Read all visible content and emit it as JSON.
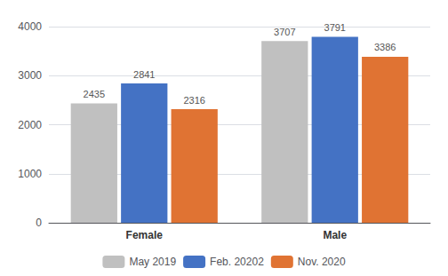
{
  "chart_data": {
    "type": "bar",
    "categories": [
      "Female",
      "Male"
    ],
    "series": [
      {
        "name": "May 2019",
        "color": "#c0c0c0",
        "values": [
          2435,
          3707
        ]
      },
      {
        "name": "Feb. 20202",
        "color": "#4472c4",
        "values": [
          2841,
          3791
        ]
      },
      {
        "name": "Nov. 2020",
        "color": "#e07333",
        "values": [
          2316,
          3386
        ]
      }
    ],
    "ylim": [
      0,
      4000
    ],
    "yticks": [
      0,
      1000,
      2000,
      3000,
      4000
    ],
    "grid": true,
    "legend": "bottom",
    "data_labels": true
  }
}
